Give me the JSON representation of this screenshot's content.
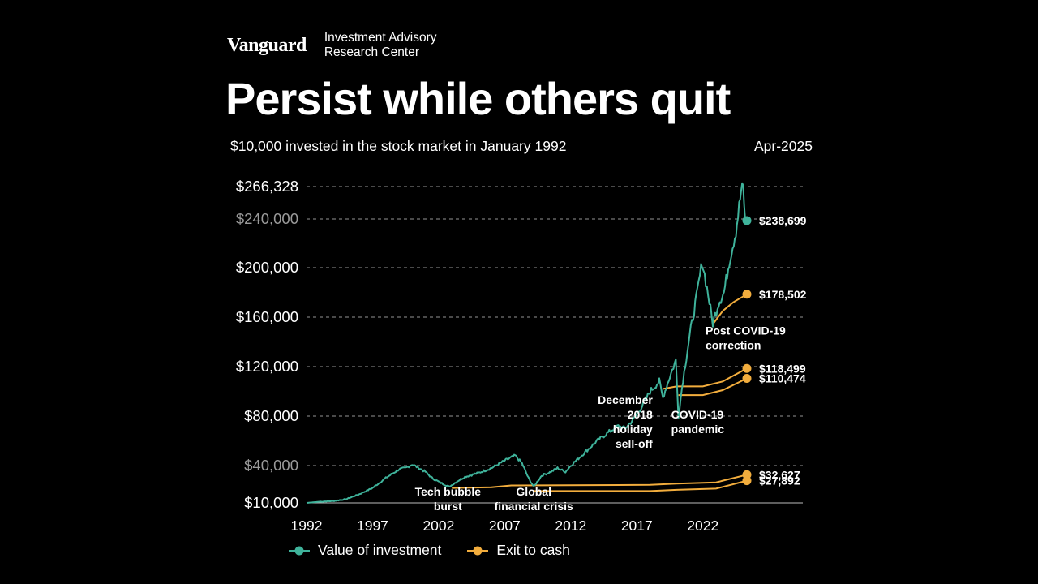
{
  "header": {
    "logo": "Vanguard",
    "sub_line1": "Investment Advisory",
    "sub_line2": "Research Center",
    "title": "Persist while others quit",
    "subtitle": "$10,000 invested in the stock market in January 1992",
    "date": "Apr-2025"
  },
  "colors": {
    "investment": "#3fb39b",
    "cash": "#f2ad3d",
    "grid": "#777777",
    "dim_label": "#9a9a9a"
  },
  "legend": {
    "investment": "Value of investment",
    "cash": "Exit to cash"
  },
  "chart_data": {
    "type": "line",
    "xlim": [
      1992,
      2025.33
    ],
    "ylim": [
      10000,
      266328
    ],
    "x_ticks": [
      {
        "value": 1992,
        "label": "1992"
      },
      {
        "value": 1997,
        "label": "1997"
      },
      {
        "value": 2002,
        "label": "2002"
      },
      {
        "value": 2007,
        "label": "2007"
      },
      {
        "value": 2012,
        "label": "2012"
      },
      {
        "value": 2017,
        "label": "2017"
      },
      {
        "value": 2022,
        "label": "2022"
      }
    ],
    "y_ticks": [
      {
        "value": 266328,
        "label": "$266,328",
        "highlight": true
      },
      {
        "value": 240000,
        "label": "$240,000",
        "highlight": false
      },
      {
        "value": 200000,
        "label": "$200,000",
        "highlight": true
      },
      {
        "value": 160000,
        "label": "$160,000",
        "highlight": true
      },
      {
        "value": 120000,
        "label": "$120,000",
        "highlight": true
      },
      {
        "value": 80000,
        "label": "$80,000",
        "highlight": true
      },
      {
        "value": 40000,
        "label": "$40,000",
        "highlight": false
      },
      {
        "value": 10000,
        "label": "$10,000",
        "highlight": true
      }
    ],
    "series": [
      {
        "name": "Value of investment",
        "color_key": "investment",
        "points": [
          [
            1992,
            10000
          ],
          [
            1993,
            11000
          ],
          [
            1994,
            11500
          ],
          [
            1995,
            13000
          ],
          [
            1996,
            17000
          ],
          [
            1997,
            22000
          ],
          [
            1998,
            30000
          ],
          [
            1999,
            37000
          ],
          [
            1999.5,
            38000
          ],
          [
            2000,
            41000
          ],
          [
            2000.5,
            38000
          ],
          [
            2001,
            35000
          ],
          [
            2001.5,
            30000
          ],
          [
            2002,
            27000
          ],
          [
            2002.8,
            23000
          ],
          [
            2003.5,
            28000
          ],
          [
            2004,
            31000
          ],
          [
            2005,
            34000
          ],
          [
            2006,
            38000
          ],
          [
            2007,
            44000
          ],
          [
            2007.8,
            48000
          ],
          [
            2008.3,
            42000
          ],
          [
            2008.8,
            30000
          ],
          [
            2009.2,
            23000
          ],
          [
            2009.8,
            32000
          ],
          [
            2010.5,
            35000
          ],
          [
            2011,
            38000
          ],
          [
            2011.6,
            35000
          ],
          [
            2012,
            40000
          ],
          [
            2013,
            50000
          ],
          [
            2014,
            60000
          ],
          [
            2015,
            68000
          ],
          [
            2015.6,
            72000
          ],
          [
            2016.1,
            70000
          ],
          [
            2016.8,
            78000
          ],
          [
            2017.5,
            90000
          ],
          [
            2018,
            100000
          ],
          [
            2018.7,
            108000
          ],
          [
            2018.97,
            95000
          ],
          [
            2019.5,
            112000
          ],
          [
            2019.95,
            125000
          ],
          [
            2020.15,
            80000
          ],
          [
            2020.5,
            110000
          ],
          [
            2021,
            145000
          ],
          [
            2021.5,
            175000
          ],
          [
            2021.95,
            205000
          ],
          [
            2022.4,
            178000
          ],
          [
            2022.75,
            155000
          ],
          [
            2023.2,
            172000
          ],
          [
            2023.6,
            180000
          ],
          [
            2024,
            205000
          ],
          [
            2024.5,
            230000
          ],
          [
            2024.9,
            263000
          ],
          [
            2025.05,
            265000
          ],
          [
            2025.2,
            240000
          ],
          [
            2025.33,
            238699
          ]
        ],
        "end_label": "$238,699"
      },
      {
        "name": "Exit to cash",
        "color_key": "cash",
        "branches": [
          {
            "points": [
              [
                2022.8,
                155000
              ],
              [
                2023.5,
                165000
              ],
              [
                2024.3,
                172000
              ],
              [
                2025.33,
                178502
              ]
            ],
            "end_label": "$178,502"
          },
          {
            "points": [
              [
                2019,
                102000
              ],
              [
                2020,
                104000
              ],
              [
                2022,
                104000
              ],
              [
                2023.5,
                108000
              ],
              [
                2025.33,
                118499
              ]
            ],
            "end_label": "$118,499"
          },
          {
            "points": [
              [
                2020.15,
                97000
              ],
              [
                2022,
                97000
              ],
              [
                2023.5,
                101000
              ],
              [
                2025.33,
                110474
              ]
            ],
            "end_label": "$110,474"
          },
          {
            "points": [
              [
                2003,
                22000
              ],
              [
                2006,
                22500
              ],
              [
                2007.5,
                24000
              ],
              [
                2018,
                24500
              ],
              [
                2020,
                25500
              ],
              [
                2023,
                26500
              ],
              [
                2025.33,
                32627
              ]
            ],
            "end_label": "$32,627"
          },
          {
            "points": [
              [
                2009.2,
                19500
              ],
              [
                2018,
                19500
              ],
              [
                2020,
                20500
              ],
              [
                2023,
                21500
              ],
              [
                2025.33,
                27892
              ]
            ],
            "end_label": "$27,892"
          }
        ]
      }
    ],
    "annotations": [
      {
        "lines": [
          "Tech bubble",
          "burst"
        ],
        "x": 2002.7,
        "y": 16000,
        "anchor": "middle"
      },
      {
        "lines": [
          "Global",
          "financial crisis"
        ],
        "x": 2009.2,
        "y": 16000,
        "anchor": "middle"
      },
      {
        "lines": [
          "December",
          "2018",
          "holiday",
          "sell-off"
        ],
        "x": 2018.2,
        "y": 90000,
        "anchor": "end"
      },
      {
        "lines": [
          "COVID-19",
          "pandemic"
        ],
        "x": 2019.6,
        "y": 78000,
        "anchor": "start"
      },
      {
        "lines": [
          "Post COVID-19",
          "correction"
        ],
        "x": 2022.2,
        "y": 146000,
        "anchor": "start"
      }
    ]
  }
}
